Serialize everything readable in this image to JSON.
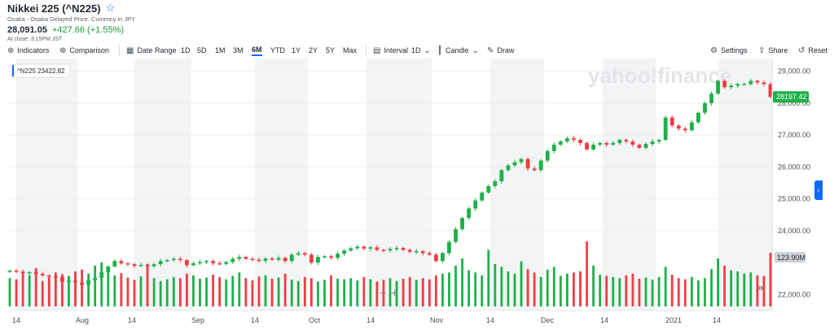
{
  "header": {
    "title": "Nikkei 225 (^N225)",
    "subtitle": "Osaka - Osaka Delayed Price. Currency in JPY",
    "price": "28,091.05",
    "change": "+427.66 (+1.55%)",
    "close_note": "At close: 3:15PM JST"
  },
  "toolbar": {
    "indicators": "Indicators",
    "comparison": "Comparison",
    "date_range": "Date Range",
    "ranges": [
      "1D",
      "5D",
      "1M",
      "3M",
      "6M",
      "YTD",
      "1Y",
      "2Y",
      "5Y",
      "Max"
    ],
    "active_range": "6M",
    "interval": "Interval",
    "interval_value": "1D",
    "candle": "Candle",
    "draw": "Draw",
    "settings": "Settings",
    "share": "Share",
    "reset": "Reset"
  },
  "chart_data": {
    "type": "candlestick",
    "symbol_label": "^N225",
    "hover_value": "23422.82",
    "current_price_label": "28197.42",
    "volume_label": "123.90M",
    "watermark": "yahoo!finance",
    "price_ticks": [
      "29,000.00",
      "28,000.00",
      "27,000.00",
      "26,000.00",
      "25,000.00",
      "24,000.00",
      "22,000.00"
    ],
    "price_tick_values": [
      29000,
      28000,
      27000,
      26000,
      25000,
      24000,
      22000
    ],
    "x_labels": [
      "14",
      "Aug",
      "14",
      "Sep",
      "14",
      "Oct",
      "14",
      "Nov",
      "14",
      "Dec",
      "14",
      "2021",
      "14"
    ],
    "price_range": [
      21500,
      29400
    ],
    "closes": [
      22750,
      22720,
      22680,
      22700,
      22650,
      22600,
      22570,
      22550,
      22400,
      22430,
      22380,
      22300,
      22450,
      22520,
      22700,
      22880,
      23050,
      22980,
      22950,
      22900,
      22930,
      22890,
      22950,
      23050,
      23080,
      23120,
      23080,
      22920,
      22980,
      23020,
      23050,
      22980,
      22960,
      23020,
      23120,
      23180,
      23120,
      23090,
      23060,
      23130,
      23090,
      23150,
      23050,
      23250,
      23300,
      23250,
      23000,
      23180,
      23200,
      23150,
      23280,
      23380,
      23450,
      23500,
      23440,
      23480,
      23400,
      23380,
      23430,
      23460,
      23400,
      23340,
      23360,
      23300,
      23250,
      23050,
      23300,
      23650,
      24050,
      24400,
      24700,
      24950,
      25200,
      25400,
      25550,
      25900,
      26050,
      26150,
      26250,
      25950,
      25900,
      26200,
      26500,
      26700,
      26800,
      26900,
      26850,
      26750,
      26550,
      26700,
      26750,
      26700,
      26750,
      26850,
      26800,
      26700,
      26600,
      26720,
      26800,
      26850,
      27550,
      27300,
      27200,
      27150,
      27400,
      27700,
      28000,
      28300,
      28700,
      28500,
      28550,
      28600,
      28600,
      28700,
      28650,
      28600,
      28197
    ],
    "volumes": [
      0.5,
      0.48,
      0.62,
      0.55,
      0.68,
      0.45,
      0.52,
      0.6,
      0.57,
      0.54,
      0.62,
      0.65,
      0.58,
      0.72,
      0.78,
      0.66,
      0.55,
      0.59,
      0.51,
      0.47,
      0.53,
      0.75,
      0.5,
      0.45,
      0.48,
      0.52,
      0.5,
      0.58,
      0.55,
      0.49,
      0.51,
      0.56,
      0.52,
      0.48,
      0.54,
      0.6,
      0.5,
      0.46,
      0.53,
      0.55,
      0.49,
      0.51,
      0.58,
      0.47,
      0.45,
      0.52,
      0.5,
      0.44,
      0.47,
      0.55,
      0.49,
      0.48,
      0.5,
      0.46,
      0.52,
      0.48,
      0.44,
      0.47,
      0.5,
      0.45,
      0.49,
      0.52,
      0.47,
      0.5,
      0.48,
      0.55,
      0.58,
      0.6,
      0.72,
      0.85,
      0.64,
      0.6,
      0.55,
      1.0,
      0.75,
      0.7,
      0.62,
      0.58,
      0.8,
      0.66,
      0.6,
      0.52,
      0.65,
      0.7,
      0.54,
      0.58,
      0.6,
      0.62,
      1.15,
      0.72,
      0.56,
      0.54,
      0.52,
      0.5,
      0.55,
      0.58,
      0.49,
      0.51,
      0.47,
      0.52,
      0.7,
      0.56,
      0.5,
      0.48,
      0.52,
      0.46,
      0.5,
      0.66,
      0.85,
      0.72,
      0.64,
      0.62,
      0.58,
      0.6,
      0.55,
      0.54,
      0.95
    ]
  }
}
